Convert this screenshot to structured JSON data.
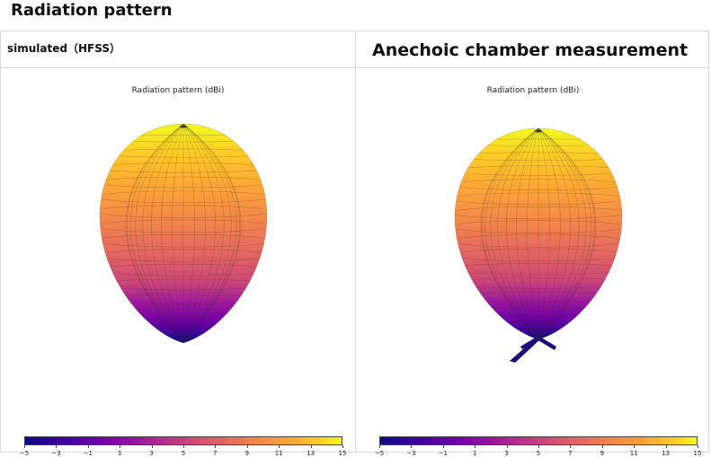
{
  "page": {
    "title": "Radiation pattern"
  },
  "table": {
    "headers": [
      "simulated（HFSS）",
      "Anechoic chamber measurement"
    ]
  },
  "panels": [
    {
      "plot_title": "Radiation pattern (dBi)",
      "colorbar_ticks": [
        "−5",
        "−3",
        "−1",
        "1",
        "3",
        "5",
        "7",
        "9",
        "11",
        "13",
        "15"
      ],
      "has_back_lobes": false
    },
    {
      "plot_title": "Radiation pattern (dBi)",
      "colorbar_ticks": [
        "−5",
        "−3",
        "−1",
        "1",
        "3",
        "5",
        "7",
        "9",
        "11",
        "13",
        "15"
      ],
      "has_back_lobes": true
    }
  ],
  "colormap": "plasma",
  "colors": {
    "border": "#d9d9d9",
    "lobe_low": "#0d0887",
    "lobe_high": "#f0f921"
  }
}
